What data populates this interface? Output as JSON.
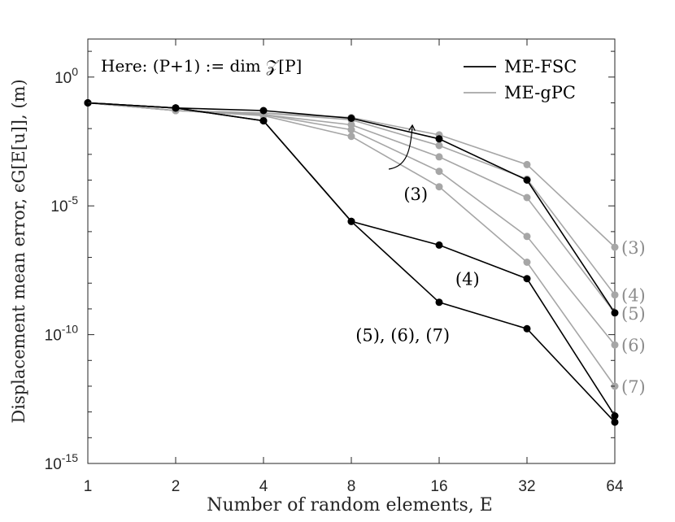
{
  "chart_data": {
    "type": "line",
    "title": "",
    "xlabel": "Number of random elements, E",
    "ylabel": "Displacement mean error, ϵG[E[u]], (m)",
    "x_scale": "log2",
    "y_scale": "log10",
    "x": [
      1,
      2,
      4,
      8,
      16,
      32,
      64
    ],
    "x_tick_labels": [
      "1",
      "2",
      "4",
      "8",
      "16",
      "32",
      "64"
    ],
    "ylim": [
      1e-15,
      30.0
    ],
    "y_ticks": [
      {
        "base": "10",
        "exp": "0"
      },
      {
        "base": "10",
        "exp": "-5"
      },
      {
        "base": "10",
        "exp": "-10"
      },
      {
        "base": "10",
        "exp": "-15"
      }
    ],
    "grid": false,
    "legend_position": "top-right",
    "annotation": "Here: (P+1) := dim 𝒵[P]",
    "colors": {
      "fsc": "#000000",
      "gpc": "#a6a6a6"
    },
    "series": [
      {
        "name": "ME-FSC",
        "group": "fsc",
        "label": "(3)",
        "values": [
          0.1,
          0.063,
          0.05,
          0.025,
          0.004,
          0.0001,
          7e-10
        ]
      },
      {
        "name": "ME-FSC",
        "group": "fsc",
        "label": "(4)",
        "values": [
          0.1,
          0.063,
          0.02,
          2.5e-06,
          3e-07,
          1.5e-08,
          7e-14
        ]
      },
      {
        "name": "ME-FSC",
        "group": "fsc",
        "label": "(5), (6), (7)",
        "values": [
          0.1,
          0.063,
          0.02,
          2.5e-06,
          1.8e-09,
          1.7e-10,
          4e-14
        ]
      },
      {
        "name": "ME-gPC",
        "group": "gpc",
        "label": "(3)",
        "values": [
          0.1,
          0.05,
          0.04,
          0.027,
          0.0057,
          0.0004,
          2.5e-07
        ]
      },
      {
        "name": "ME-gPC",
        "group": "gpc",
        "label": "(4)",
        "values": [
          0.1,
          0.05,
          0.04,
          0.022,
          0.0022,
          0.00011,
          3.5e-09
        ]
      },
      {
        "name": "ME-gPC",
        "group": "gpc",
        "label": "(5)",
        "values": [
          0.1,
          0.05,
          0.035,
          0.014,
          0.0008,
          2.1e-05,
          7e-10
        ]
      },
      {
        "name": "ME-gPC",
        "group": "gpc",
        "label": "(6)",
        "values": [
          0.1,
          0.05,
          0.035,
          0.009,
          0.00022,
          6.5e-07,
          4e-11
        ]
      },
      {
        "name": "ME-gPC",
        "group": "gpc",
        "label": "(7)",
        "values": [
          0.1,
          0.05,
          0.032,
          0.005,
          5.5e-05,
          6.5e-08,
          1e-12
        ]
      }
    ],
    "legend": [
      {
        "label": "ME-FSC",
        "group": "fsc"
      },
      {
        "label": "ME-gPC",
        "group": "gpc"
      }
    ],
    "curve_labels": [
      {
        "text": "(3)",
        "group": "fsc",
        "x": 13.3,
        "y": 3e-05
      },
      {
        "text": "(4)",
        "group": "fsc",
        "x": 20,
        "y": 1.5e-08
      },
      {
        "text": "(5), (6), (7)",
        "group": "fsc",
        "x": 12,
        "y": 1e-10
      },
      {
        "text": "(3)",
        "group": "gpc",
        "x": 64,
        "y": 2.5e-07
      },
      {
        "text": "(4)",
        "group": "gpc",
        "x": 64,
        "y": 3.5e-09
      },
      {
        "text": "(5)",
        "group": "gpc",
        "x": 64,
        "y": 7e-10
      },
      {
        "text": "(6)",
        "group": "gpc",
        "x": 64,
        "y": 4e-11
      },
      {
        "text": "(7)",
        "group": "gpc",
        "x": 64,
        "y": 1e-12
      }
    ]
  }
}
